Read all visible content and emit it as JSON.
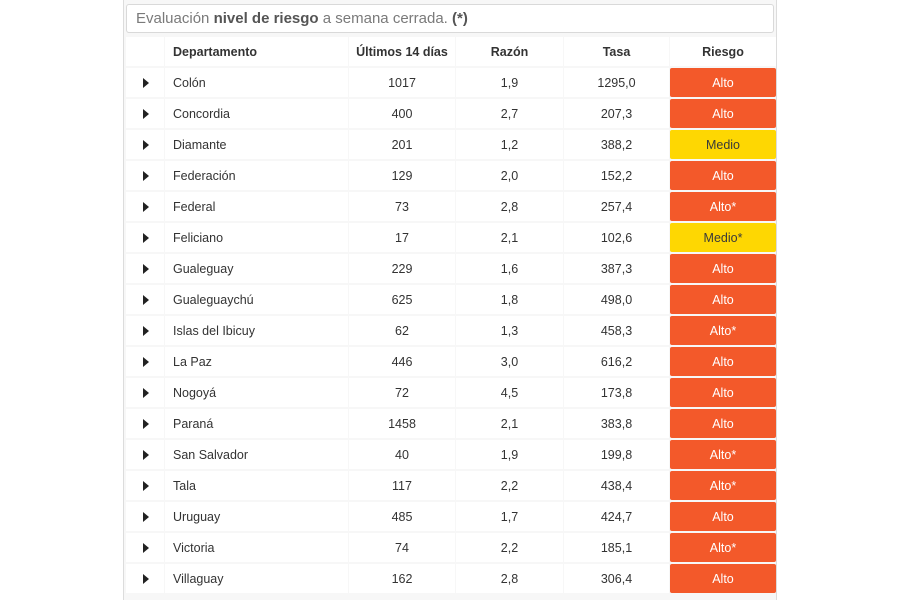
{
  "title": {
    "prefix": "Evaluación ",
    "bold": "nivel de riesgo",
    "middle": " a semana cerrada. ",
    "note": "(*)"
  },
  "columns": {
    "departamento": "Departamento",
    "ultimos": "Últimos 14 días",
    "razon": "Razón",
    "tasa": "Tasa",
    "riesgo": "Riesgo"
  },
  "rows": [
    {
      "departamento": "Colón",
      "ultimos": "1017",
      "razon": "1,9",
      "tasa": "1295,0",
      "riesgo": "Alto",
      "level": "alto"
    },
    {
      "departamento": "Concordia",
      "ultimos": "400",
      "razon": "2,7",
      "tasa": "207,3",
      "riesgo": "Alto",
      "level": "alto"
    },
    {
      "departamento": "Diamante",
      "ultimos": "201",
      "razon": "1,2",
      "tasa": "388,2",
      "riesgo": "Medio",
      "level": "medio"
    },
    {
      "departamento": "Federación",
      "ultimos": "129",
      "razon": "2,0",
      "tasa": "152,2",
      "riesgo": "Alto",
      "level": "alto"
    },
    {
      "departamento": "Federal",
      "ultimos": "73",
      "razon": "2,8",
      "tasa": "257,4",
      "riesgo": "Alto*",
      "level": "alto"
    },
    {
      "departamento": "Feliciano",
      "ultimos": "17",
      "razon": "2,1",
      "tasa": "102,6",
      "riesgo": "Medio*",
      "level": "medio"
    },
    {
      "departamento": "Gualeguay",
      "ultimos": "229",
      "razon": "1,6",
      "tasa": "387,3",
      "riesgo": "Alto",
      "level": "alto"
    },
    {
      "departamento": "Gualeguaychú",
      "ultimos": "625",
      "razon": "1,8",
      "tasa": "498,0",
      "riesgo": "Alto",
      "level": "alto"
    },
    {
      "departamento": "Islas del Ibicuy",
      "ultimos": "62",
      "razon": "1,3",
      "tasa": "458,3",
      "riesgo": "Alto*",
      "level": "alto"
    },
    {
      "departamento": "La Paz",
      "ultimos": "446",
      "razon": "3,0",
      "tasa": "616,2",
      "riesgo": "Alto",
      "level": "alto"
    },
    {
      "departamento": "Nogoyá",
      "ultimos": "72",
      "razon": "4,5",
      "tasa": "173,8",
      "riesgo": "Alto",
      "level": "alto"
    },
    {
      "departamento": "Paraná",
      "ultimos": "1458",
      "razon": "2,1",
      "tasa": "383,8",
      "riesgo": "Alto",
      "level": "alto"
    },
    {
      "departamento": "San Salvador",
      "ultimos": "40",
      "razon": "1,9",
      "tasa": "199,8",
      "riesgo": "Alto*",
      "level": "alto"
    },
    {
      "departamento": "Tala",
      "ultimos": "117",
      "razon": "2,2",
      "tasa": "438,4",
      "riesgo": "Alto*",
      "level": "alto"
    },
    {
      "departamento": "Uruguay",
      "ultimos": "485",
      "razon": "1,7",
      "tasa": "424,7",
      "riesgo": "Alto",
      "level": "alto"
    },
    {
      "departamento": "Victoria",
      "ultimos": "74",
      "razon": "2,2",
      "tasa": "185,1",
      "riesgo": "Alto*",
      "level": "alto"
    },
    {
      "departamento": "Villaguay",
      "ultimos": "162",
      "razon": "2,8",
      "tasa": "306,4",
      "riesgo": "Alto",
      "level": "alto"
    }
  ],
  "colors": {
    "alto": "#f3592a",
    "medio": "#fed702"
  },
  "icons": {
    "expand": "triangle-right-icon"
  }
}
